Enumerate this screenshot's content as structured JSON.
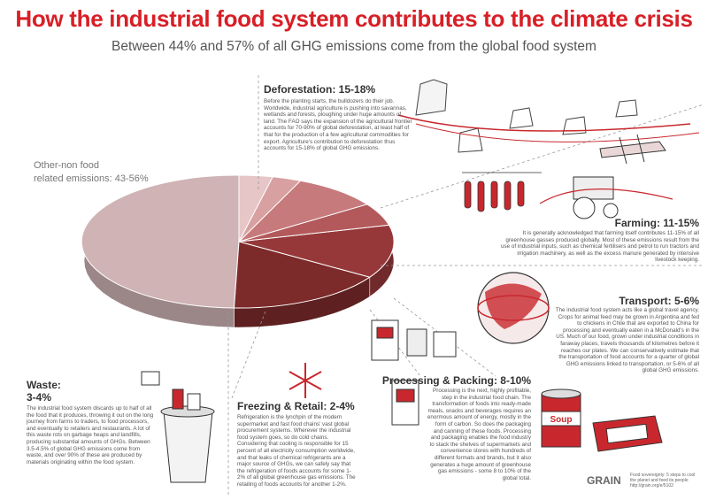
{
  "title": "How the industrial food system contributes to the climate crisis",
  "subtitle": "Between 44% and 57% of all GHG emissions come from the global food system",
  "chart_data": {
    "type": "pie",
    "slices": [
      {
        "label": "Other-non food related emissions: 43-56%",
        "range": "43-56%",
        "value": 49.5,
        "color": "#cfb3b5"
      },
      {
        "label": "Deforestation: 15-18%",
        "range": "15-18%",
        "value": 16.5,
        "color": "#7d2a2a"
      },
      {
        "label": "Farming: 11-15%",
        "range": "11-15%",
        "value": 13,
        "color": "#96383a"
      },
      {
        "label": "Transport: 5-6%",
        "range": "5-6%",
        "value": 5.5,
        "color": "#b3595b"
      },
      {
        "label": "Processing & Packing: 8-10%",
        "range": "8-10%",
        "value": 9,
        "color": "#c77a7c"
      },
      {
        "label": "Freezing & Retail: 2-4%",
        "range": "2-4%",
        "value": 3,
        "color": "#d8a0a1"
      },
      {
        "label": "Waste: 3-4%",
        "range": "3-4%",
        "value": 3.5,
        "color": "#e6c6c7"
      }
    ]
  },
  "other": {
    "line1": "Other-non food",
    "line2": "related emissions: 43-56%"
  },
  "deforestation": {
    "title": "Deforestation: 15-18%",
    "text": "Before the planting starts, the bulldozers do their job. Worldwide, industrial agriculture is pushing into savannas, wetlands and forests, ploughing under huge amounts of land. The FAO says the expansion of the agricultural frontier accounts for 70-90% of global deforestation, at least half of that for the production of a few agricultural commodities for export. Agriculture's contribution to deforestation thus accounts for 15-18% of global GHG emissions."
  },
  "farming": {
    "title": "Farming: 11-15%",
    "text": "It is generally acknowledged that farming itself contributes 11-15% of all greenhouse gasses produced globally. Most of these emissions result from the use of industrial inputs, such as chemical fertilisers and petrol to run tractors and irrigation machinery, as well as the excess manure generated by intensive livestock keeping."
  },
  "transport": {
    "title": "Transport: 5-6%",
    "text": "The industrial food system acts like a global travel agency. Crops for animal feed may be grown in Argentina and fed to chickens in Chile that are exported to China for processing and eventually eaten in a McDonald's in the US. Much of our food, grown under industrial conditions in faraway places, travels thousands of kilometres before it reaches our plates. We can conservatively estimate that the transportation of food accounts for a quarter of global GHG emissions linked to transportation, or 5-6% of all global GHG emissions."
  },
  "processing": {
    "title": "Processing & Packing: 8-10%",
    "text": "Processing is the next, highly profitable, step in the industrial food chain. The transformation of foods into ready-made meals, snacks and beverages requires an enormous amount of energy, mostly in the form of carbon. So does the packaging and canning of these foods. Processing and packaging enables the food industry to stack the shelves of supermarkets and convenience stores with hundreds of different formats and brands, but it also generates a huge amount of greenhouse gas emissions - some 8 to 10% of the global total."
  },
  "freezing": {
    "title": "Freezing & Retail: 2-4%",
    "text": "Refrigeration is the lynchpin of the modern supermarket and fast food chains' vast global procurement systems. Wherever the industrial food system goes, so do cold chains. Considering that cooling is responsible for 15 percent of all electricity consumption worldwide, and that leaks of chemical refrigerants are a major source of GHGs, we can safely say that the refrigeration of foods accounts for some 1-2% of all global greenhouse gas emissions. The retailing of foods accounts for another 1-2%."
  },
  "waste": {
    "title1": "Waste:",
    "title2": "3-4%",
    "text": "The industrial food system discards up to half of all the food that it produces, throwing it out on the long journey from farms to traders, to food processors, and eventually to retailers and restaurants. A lot of this waste rots on garbage heaps and landfills, producing substantial amounts of GHGs. Between 3.5-4.5% of global GHG emissions come from waste, and over 90% of these are produced by materials originating within the food system."
  },
  "footer": {
    "logo": "GRAIN",
    "text": "Food sovereignty: 5 steps to cool the planet and feed its people http://grain.org/e/5102"
  },
  "colors": {
    "title": "#d81f26",
    "accent": "#c8282d"
  },
  "icons": [
    "tree-stumps-icon",
    "airplane-icon",
    "meat-hooks-icon",
    "tractor-icon",
    "globe-icon",
    "food-packages-icon",
    "snowflake-icon",
    "trash-can-icon",
    "soup-can-icon"
  ]
}
